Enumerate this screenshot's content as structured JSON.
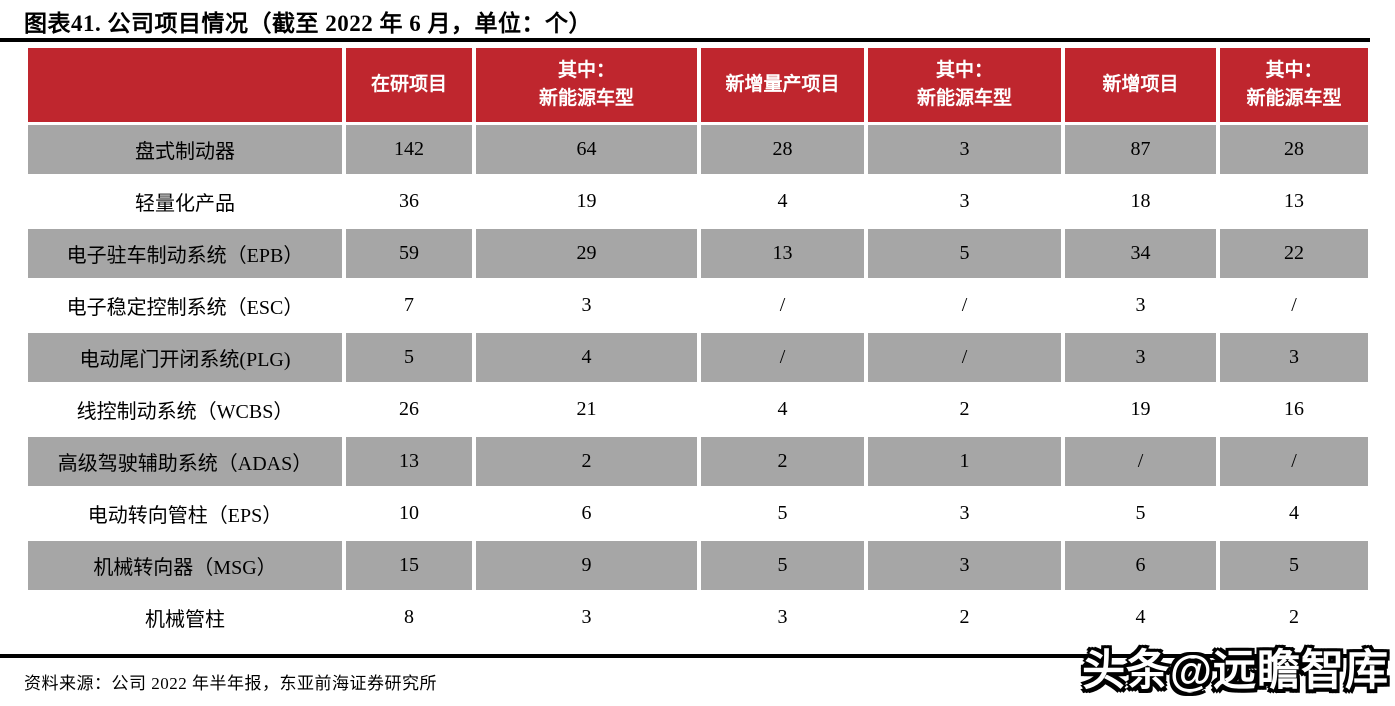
{
  "figure": {
    "title": "图表41. 公司项目情况（截至 2022 年 6 月，单位：个）",
    "source_note": "资料来源：公司 2022 年半年报，东亚前海证券研究所",
    "watermark": "头条@远瞻智库"
  },
  "colors": {
    "header_bg": "#BF262E",
    "alt_row_bg": "#A6A6A6",
    "row_bg": "#FFFFFF",
    "rule": "#000000"
  },
  "chart_data": {
    "type": "table",
    "title": "公司项目情况（截至 2022 年 6 月，单位：个）",
    "columns": [
      "",
      "在研项目",
      "其中：\n新能源车型",
      "新增量产项目",
      "其中：\n新能源车型",
      "新增项目",
      "其中：\n新能源车型"
    ],
    "rows": [
      [
        "盘式制动器",
        "142",
        "64",
        "28",
        "3",
        "87",
        "28"
      ],
      [
        "轻量化产品",
        "36",
        "19",
        "4",
        "3",
        "18",
        "13"
      ],
      [
        "电子驻车制动系统（EPB）",
        "59",
        "29",
        "13",
        "5",
        "34",
        "22"
      ],
      [
        "电子稳定控制系统（ESC）",
        "7",
        "3",
        "/",
        "/",
        "3",
        "/"
      ],
      [
        "电动尾门开闭系统(PLG)",
        "5",
        "4",
        "/",
        "/",
        "3",
        "3"
      ],
      [
        "线控制动系统（WCBS）",
        "26",
        "21",
        "4",
        "2",
        "19",
        "16"
      ],
      [
        "高级驾驶辅助系统（ADAS）",
        "13",
        "2",
        "2",
        "1",
        "/",
        "/"
      ],
      [
        "电动转向管柱（EPS）",
        "10",
        "6",
        "5",
        "3",
        "5",
        "4"
      ],
      [
        "机械转向器（MSG）",
        "15",
        "9",
        "5",
        "3",
        "6",
        "5"
      ],
      [
        "机械管柱",
        "8",
        "3",
        "3",
        "2",
        "4",
        "2"
      ]
    ]
  }
}
